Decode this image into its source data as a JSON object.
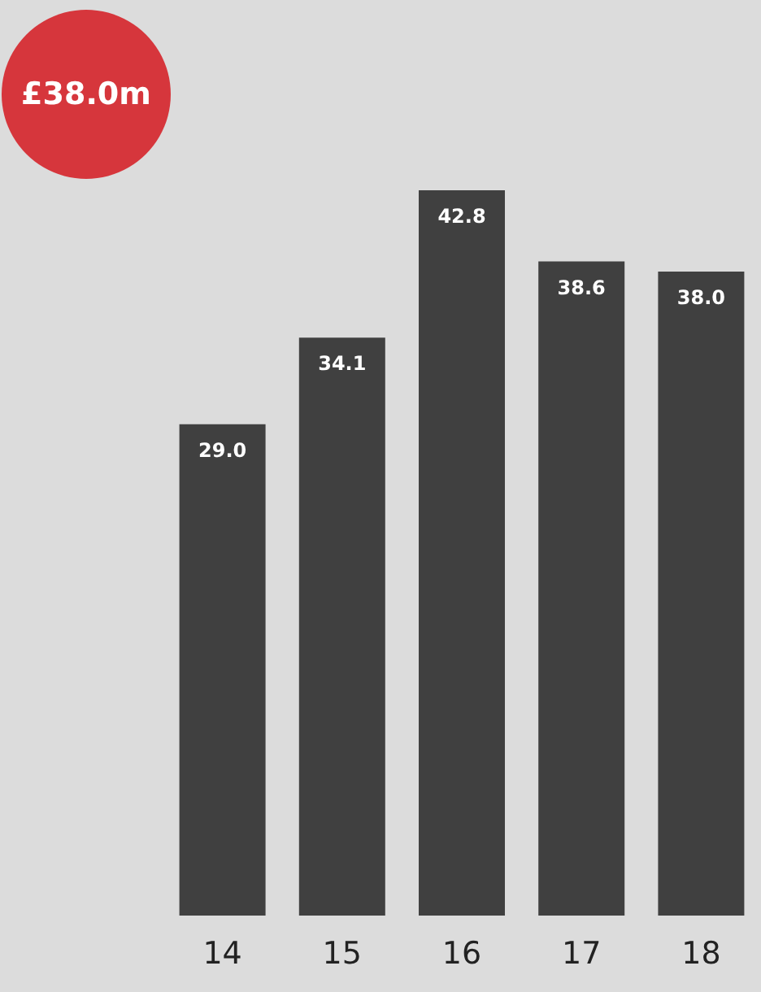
{
  "chart_data": {
    "type": "bar",
    "annotations": [
      "£38.0m"
    ],
    "categories": [
      "14",
      "15",
      "16",
      "17",
      "18"
    ],
    "values": [
      29.0,
      34.1,
      42.8,
      38.6,
      38.0
    ],
    "value_labels": [
      "29.0",
      "34.1",
      "42.8",
      "38.6",
      "38.0"
    ],
    "color": "#404040"
  }
}
